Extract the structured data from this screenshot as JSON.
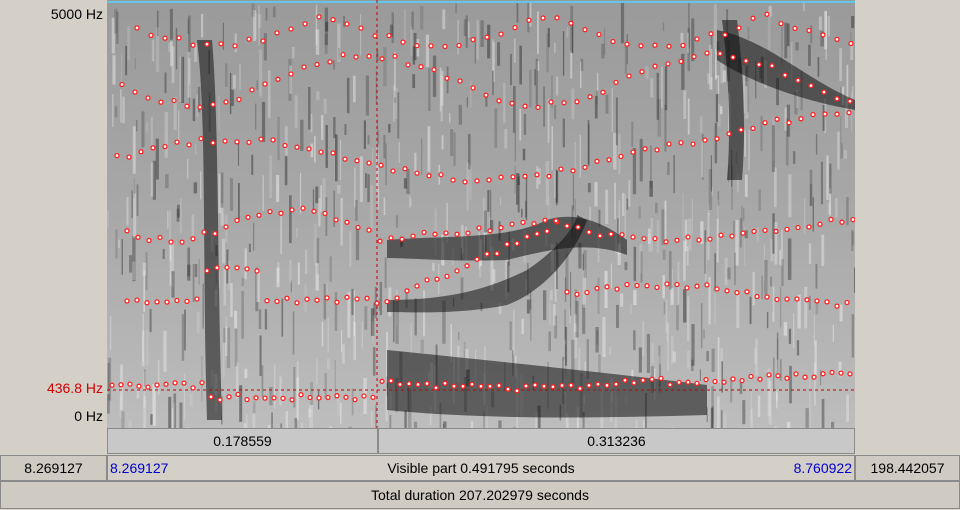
{
  "freq_axis": {
    "top_label": "5000 Hz",
    "cursor_label": "436.8 Hz",
    "bottom_label": "0 Hz"
  },
  "segments": {
    "left_duration": "0.178559",
    "right_duration": "0.313236"
  },
  "visible_bar": {
    "left_outer": "8.269127",
    "start_time": "8.269127",
    "visible_text": "Visible part 0.491795 seconds",
    "end_time": "8.760922",
    "right_outer": "198.442057"
  },
  "total_bar": {
    "text": "Total duration 207.202979 seconds"
  },
  "colors": {
    "cursor": "#cc0000",
    "time_blue": "#0000cc",
    "formant_dot": "#ff2020",
    "panel": "#d4d0c8"
  }
}
